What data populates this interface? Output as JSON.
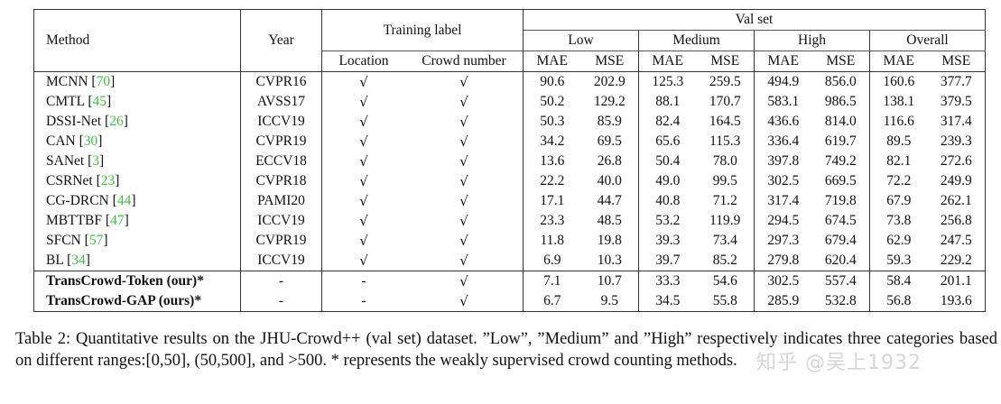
{
  "table": {
    "headers": {
      "method": "Method",
      "year": "Year",
      "training_label": "Training label",
      "location": "Location",
      "crowd_number": "Crowd number",
      "val_set": "Val set",
      "groups": [
        "Low",
        "Medium",
        "High",
        "Overall"
      ],
      "metrics": [
        "MAE",
        "MSE",
        "MAE",
        "MSE",
        "MAE",
        "MSE",
        "MAE",
        "MSE"
      ]
    },
    "rows": [
      {
        "name": "MCNN",
        "ref": "70",
        "year": "CVPR16",
        "location": "√",
        "crowd": "√",
        "values": [
          "90.6",
          "202.9",
          "125.3",
          "259.5",
          "494.9",
          "856.0",
          "160.6",
          "377.7"
        ],
        "bold": []
      },
      {
        "name": "CMTL",
        "ref": "45",
        "year": "AVSS17",
        "location": "√",
        "crowd": "√",
        "values": [
          "50.2",
          "129.2",
          "88.1",
          "170.7",
          "583.1",
          "986.5",
          "138.1",
          "379.5"
        ],
        "bold": []
      },
      {
        "name": "DSSI-Net",
        "ref": "26",
        "year": "ICCV19",
        "location": "√",
        "crowd": "√",
        "values": [
          "50.3",
          "85.9",
          "82.4",
          "164.5",
          "436.6",
          "814.0",
          "116.6",
          "317.4"
        ],
        "bold": []
      },
      {
        "name": "CAN",
        "ref": "30",
        "year": "CVPR19",
        "location": "√",
        "crowd": "√",
        "values": [
          "34.2",
          "69.5",
          "65.6",
          "115.3",
          "336.4",
          "619.7",
          "89.5",
          "239.3"
        ],
        "bold": [
          5
        ]
      },
      {
        "name": "SANet",
        "ref": "3",
        "year": "ECCV18",
        "location": "√",
        "crowd": "√",
        "values": [
          "13.6",
          "26.8",
          "50.4",
          "78.0",
          "397.8",
          "749.2",
          "82.1",
          "272.6"
        ],
        "bold": []
      },
      {
        "name": "CSRNet",
        "ref": "23",
        "year": "CVPR18",
        "location": "√",
        "crowd": "√",
        "values": [
          "22.2",
          "40.0",
          "49.0",
          "99.5",
          "302.5",
          "669.5",
          "72.2",
          "249.9"
        ],
        "bold": []
      },
      {
        "name": "CG-DRCN",
        "ref": "44",
        "year": "PAMI20",
        "location": "√",
        "crowd": "√",
        "values": [
          "17.1",
          "44.7",
          "40.8",
          "71.2",
          "317.4",
          "719.8",
          "67.9",
          "262.1"
        ],
        "bold": [
          3
        ]
      },
      {
        "name": "MBTTBF",
        "ref": "47",
        "year": "ICCV19",
        "location": "√",
        "crowd": "√",
        "values": [
          "23.3",
          "48.5",
          "53.2",
          "119.9",
          "294.5",
          "674.5",
          "73.8",
          "256.8"
        ],
        "bold": []
      },
      {
        "name": "SFCN",
        "ref": "57",
        "year": "CVPR19",
        "location": "√",
        "crowd": "√",
        "values": [
          "11.8",
          "19.8",
          "39.3",
          "73.4",
          "297.3",
          "679.4",
          "62.9",
          "247.5"
        ],
        "bold": [
          2
        ]
      },
      {
        "name": "BL",
        "ref": "34",
        "year": "ICCV19",
        "location": "√",
        "crowd": "√",
        "values": [
          "6.9",
          "10.3",
          "39.7",
          "85.2",
          "279.8",
          "620.4",
          "59.3",
          "229.2"
        ],
        "bold": [
          0,
          1,
          4,
          6,
          7
        ]
      },
      {
        "name": "TransCrowd-Token (our)*",
        "ref": "",
        "year": "-",
        "location": "-",
        "crowd": "√",
        "values": [
          "7.1",
          "10.7",
          "33.3",
          "54.6",
          "302.5",
          "557.4",
          "58.4",
          "201.1"
        ],
        "bold": [
          2,
          3
        ],
        "ours": true
      },
      {
        "name": "TransCrowd-GAP (ours)*",
        "ref": "",
        "year": "-",
        "location": "-",
        "crowd": "√",
        "values": [
          "6.7",
          "9.5",
          "34.5",
          "55.8",
          "285.9",
          "532.8",
          "56.8",
          "193.6"
        ],
        "bold": [
          0,
          1,
          4,
          5,
          6,
          7
        ],
        "ours": true
      }
    ]
  },
  "caption": {
    "text": "Table 2: Quantitative results on the JHU-Crowd++ (val set) dataset. ”Low”, ”Medium” and ”High” respectively indicates three categories based on different ranges:[0,50], (50,500], and >500. * represents the weakly supervised crowd counting methods."
  },
  "watermark": {
    "text": "知乎 @吴上1932"
  },
  "colors": {
    "reference_link": "#3cc43c",
    "border": "#333333",
    "text": "#111111"
  }
}
